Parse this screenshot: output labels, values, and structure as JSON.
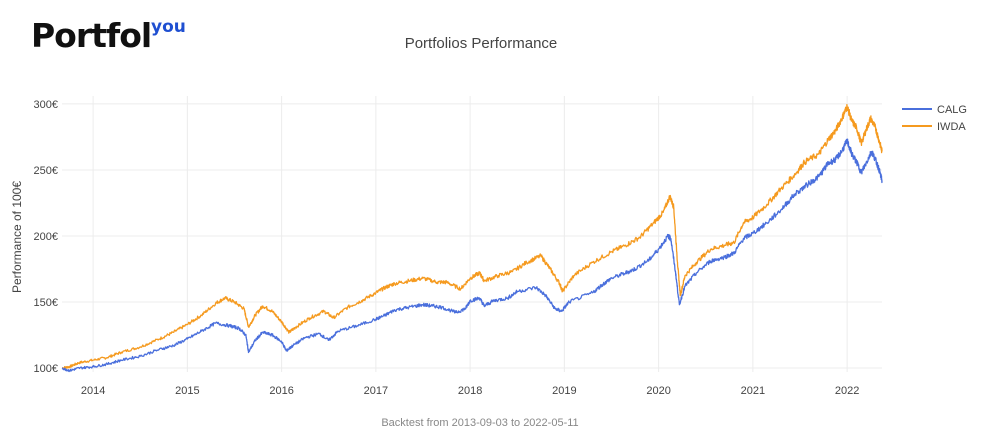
{
  "brand": {
    "name": "Portfol",
    "superscript": "you"
  },
  "chart_data": {
    "type": "line",
    "title": "Portfolios Performance",
    "xlabel": "",
    "ylabel": "Performance of 100€",
    "footnote": "Backtest from 2013-09-03 to 2022-05-11",
    "x_ticks": [
      "2014",
      "2015",
      "2016",
      "2017",
      "2018",
      "2019",
      "2020",
      "2021",
      "2022"
    ],
    "y_ticks": [
      "100€",
      "150€",
      "200€",
      "250€",
      "300€"
    ],
    "y_tick_values": [
      100,
      150,
      200,
      250,
      300
    ],
    "ylim": [
      97,
      306
    ],
    "xlim": [
      2013.67,
      2022.37
    ],
    "grid": true,
    "legend_position": "top-right",
    "series": [
      {
        "name": "CALG",
        "color": "#4a6fdc",
        "points": [
          [
            2013.67,
            100
          ],
          [
            2013.75,
            98
          ],
          [
            2013.85,
            100
          ],
          [
            2014.0,
            101
          ],
          [
            2014.15,
            103
          ],
          [
            2014.3,
            106
          ],
          [
            2014.5,
            109
          ],
          [
            2014.7,
            114
          ],
          [
            2014.85,
            117
          ],
          [
            2015.0,
            122
          ],
          [
            2015.15,
            128
          ],
          [
            2015.3,
            134
          ],
          [
            2015.45,
            132
          ],
          [
            2015.55,
            130
          ],
          [
            2015.62,
            125
          ],
          [
            2015.65,
            112
          ],
          [
            2015.72,
            121
          ],
          [
            2015.8,
            127
          ],
          [
            2015.9,
            125
          ],
          [
            2016.0,
            120
          ],
          [
            2016.05,
            113
          ],
          [
            2016.12,
            117
          ],
          [
            2016.25,
            123
          ],
          [
            2016.4,
            126
          ],
          [
            2016.5,
            121
          ],
          [
            2016.6,
            128
          ],
          [
            2016.8,
            132
          ],
          [
            2017.0,
            137
          ],
          [
            2017.1,
            140
          ],
          [
            2017.2,
            144
          ],
          [
            2017.35,
            146
          ],
          [
            2017.5,
            148
          ],
          [
            2017.6,
            147
          ],
          [
            2017.7,
            146
          ],
          [
            2017.85,
            142
          ],
          [
            2017.95,
            145
          ],
          [
            2018.0,
            151
          ],
          [
            2018.1,
            153
          ],
          [
            2018.15,
            147
          ],
          [
            2018.25,
            151
          ],
          [
            2018.4,
            153
          ],
          [
            2018.5,
            158
          ],
          [
            2018.7,
            161
          ],
          [
            2018.8,
            155
          ],
          [
            2018.9,
            145
          ],
          [
            2018.97,
            143
          ],
          [
            2019.05,
            150
          ],
          [
            2019.3,
            157
          ],
          [
            2019.4,
            163
          ],
          [
            2019.5,
            168
          ],
          [
            2019.65,
            172
          ],
          [
            2019.75,
            175
          ],
          [
            2019.9,
            182
          ],
          [
            2020.0,
            190
          ],
          [
            2020.1,
            200
          ],
          [
            2020.13,
            198
          ],
          [
            2020.18,
            172
          ],
          [
            2020.22,
            148
          ],
          [
            2020.28,
            162
          ],
          [
            2020.4,
            172
          ],
          [
            2020.55,
            181
          ],
          [
            2020.7,
            184
          ],
          [
            2020.8,
            187
          ],
          [
            2020.9,
            198
          ],
          [
            2021.0,
            202
          ],
          [
            2021.15,
            210
          ],
          [
            2021.3,
            220
          ],
          [
            2021.45,
            232
          ],
          [
            2021.6,
            240
          ],
          [
            2021.7,
            245
          ],
          [
            2021.8,
            255
          ],
          [
            2021.88,
            258
          ],
          [
            2021.95,
            265
          ],
          [
            2022.0,
            272
          ],
          [
            2022.05,
            262
          ],
          [
            2022.1,
            256
          ],
          [
            2022.15,
            248
          ],
          [
            2022.2,
            255
          ],
          [
            2022.26,
            264
          ],
          [
            2022.3,
            258
          ],
          [
            2022.34,
            250
          ],
          [
            2022.37,
            242
          ]
        ]
      },
      {
        "name": "IWDA",
        "color": "#f59a1f",
        "points": [
          [
            2013.67,
            100
          ],
          [
            2013.75,
            101
          ],
          [
            2013.85,
            104
          ],
          [
            2014.0,
            106
          ],
          [
            2014.15,
            108
          ],
          [
            2014.3,
            112
          ],
          [
            2014.5,
            116
          ],
          [
            2014.7,
            122
          ],
          [
            2014.85,
            127
          ],
          [
            2015.0,
            133
          ],
          [
            2015.15,
            140
          ],
          [
            2015.3,
            149
          ],
          [
            2015.4,
            153
          ],
          [
            2015.5,
            150
          ],
          [
            2015.6,
            145
          ],
          [
            2015.65,
            131
          ],
          [
            2015.72,
            140
          ],
          [
            2015.8,
            147
          ],
          [
            2015.9,
            143
          ],
          [
            2016.0,
            135
          ],
          [
            2016.08,
            127
          ],
          [
            2016.15,
            131
          ],
          [
            2016.3,
            138
          ],
          [
            2016.45,
            143
          ],
          [
            2016.55,
            138
          ],
          [
            2016.7,
            146
          ],
          [
            2016.85,
            151
          ],
          [
            2017.0,
            157
          ],
          [
            2017.1,
            161
          ],
          [
            2017.2,
            164
          ],
          [
            2017.35,
            166
          ],
          [
            2017.5,
            168
          ],
          [
            2017.65,
            165
          ],
          [
            2017.75,
            165
          ],
          [
            2017.9,
            160
          ],
          [
            2018.0,
            168
          ],
          [
            2018.1,
            172
          ],
          [
            2018.15,
            166
          ],
          [
            2018.3,
            170
          ],
          [
            2018.45,
            173
          ],
          [
            2018.6,
            180
          ],
          [
            2018.75,
            185
          ],
          [
            2018.85,
            175
          ],
          [
            2018.95,
            164
          ],
          [
            2018.98,
            158
          ],
          [
            2019.1,
            170
          ],
          [
            2019.3,
            180
          ],
          [
            2019.5,
            188
          ],
          [
            2019.65,
            193
          ],
          [
            2019.8,
            199
          ],
          [
            2019.95,
            210
          ],
          [
            2020.05,
            218
          ],
          [
            2020.12,
            230
          ],
          [
            2020.16,
            222
          ],
          [
            2020.2,
            180
          ],
          [
            2020.23,
            155
          ],
          [
            2020.28,
            170
          ],
          [
            2020.4,
            180
          ],
          [
            2020.55,
            190
          ],
          [
            2020.7,
            193
          ],
          [
            2020.8,
            195
          ],
          [
            2020.9,
            210
          ],
          [
            2021.0,
            214
          ],
          [
            2021.15,
            224
          ],
          [
            2021.3,
            236
          ],
          [
            2021.45,
            247
          ],
          [
            2021.55,
            256
          ],
          [
            2021.7,
            262
          ],
          [
            2021.8,
            273
          ],
          [
            2021.88,
            280
          ],
          [
            2021.95,
            290
          ],
          [
            2022.0,
            298
          ],
          [
            2022.05,
            287
          ],
          [
            2022.1,
            282
          ],
          [
            2022.15,
            270
          ],
          [
            2022.2,
            280
          ],
          [
            2022.25,
            289
          ],
          [
            2022.3,
            282
          ],
          [
            2022.34,
            272
          ],
          [
            2022.37,
            264
          ]
        ]
      }
    ]
  }
}
